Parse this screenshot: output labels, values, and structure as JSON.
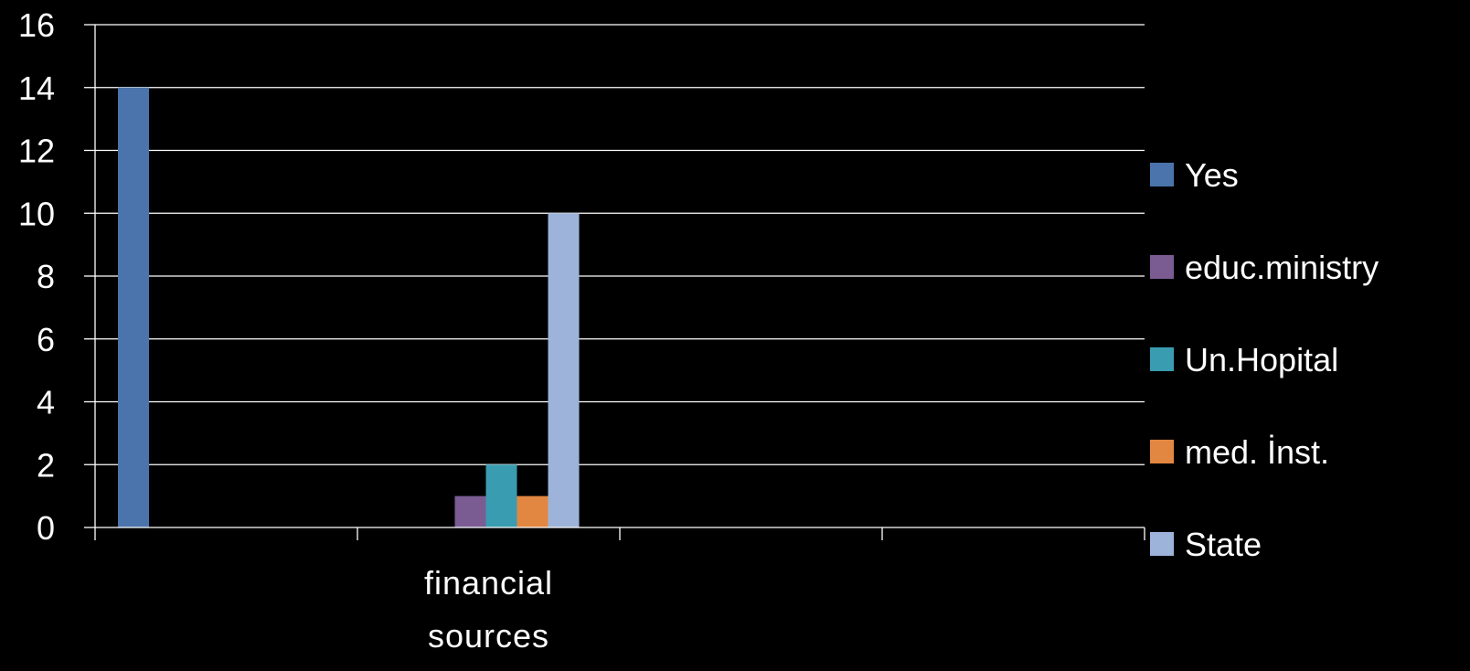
{
  "chart_data": {
    "type": "bar",
    "categories": [
      "",
      "financial sources",
      "",
      ""
    ],
    "category_label_lines": [
      [],
      [
        "financial",
        "sources"
      ],
      [],
      []
    ],
    "series": [
      {
        "name": "Yes",
        "values": [
          14,
          null,
          null,
          null
        ],
        "color": "#4a74ab"
      },
      {
        "name": "educ.ministry",
        "values": [
          null,
          1,
          null,
          null
        ],
        "color": "#7a5c93"
      },
      {
        "name": "Un.Hopital",
        "values": [
          null,
          2,
          null,
          null
        ],
        "color": "#3a9cb0"
      },
      {
        "name": "med. İnst.",
        "values": [
          null,
          1,
          null,
          null
        ],
        "color": "#e28741"
      },
      {
        "name": "State",
        "values": [
          null,
          10,
          null,
          null
        ],
        "color": "#9db3d9"
      }
    ],
    "yticks": [
      0,
      2,
      4,
      6,
      8,
      10,
      12,
      14,
      16
    ],
    "ylim": [
      0,
      16
    ],
    "grid": true,
    "legend_position": "right",
    "title": "",
    "xlabel": "",
    "ylabel": ""
  },
  "colors": {
    "background": "#000000",
    "axis": "#ffffff",
    "grid": "#ffffff",
    "text": "#ffffff"
  }
}
